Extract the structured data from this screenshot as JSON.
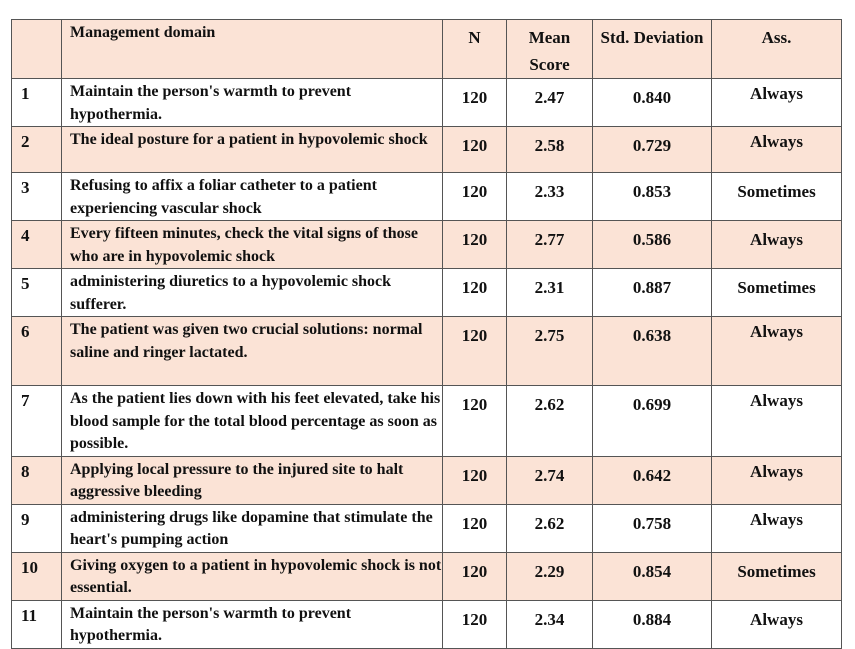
{
  "header": {
    "index": "",
    "domain": "Management domain",
    "n": "N",
    "mean": "Mean Score",
    "std": "Std. Deviation",
    "ass": "Ass."
  },
  "rows": [
    {
      "index": "1",
      "domain": "Maintain the person's warmth to prevent hypothermia.",
      "n": "120",
      "mean": "2.47",
      "std": "0.840",
      "ass": "Always"
    },
    {
      "index": "2",
      "domain": "The ideal posture for a patient in hypovolemic shock",
      "n": "120",
      "mean": "2.58",
      "std": "0.729",
      "ass": "Always"
    },
    {
      "index": "3",
      "domain": "Refusing to affix a foliar catheter to a patient experiencing vascular shock",
      "n": "120",
      "mean": "2.33",
      "std": "0.853",
      "ass": "Sometimes"
    },
    {
      "index": "4",
      "domain": "Every fifteen minutes, check the vital signs of those who are in hypovolemic shock",
      "n": "120",
      "mean": "2.77",
      "std": "0.586",
      "ass": "Always"
    },
    {
      "index": "5",
      "domain": "administering diuretics to a hypovolemic shock sufferer.",
      "n": "120",
      "mean": "2.31",
      "std": "0.887",
      "ass": "Sometimes"
    },
    {
      "index": "6",
      "domain": "The patient was given two crucial solutions: normal saline and ringer lactated.",
      "n": "120",
      "mean": "2.75",
      "std": "0.638",
      "ass": "Always"
    },
    {
      "index": "7",
      "domain": "As the patient lies down with his feet elevated, take his blood sample for the total blood percentage as soon as possible.",
      "n": "120",
      "mean": "2.62",
      "std": "0.699",
      "ass": "Always"
    },
    {
      "index": "8",
      "domain": "Applying local pressure to the injured site to halt aggressive bleeding",
      "n": "120",
      "mean": "2.74",
      "std": "0.642",
      "ass": "Always"
    },
    {
      "index": "9",
      "domain": "administering drugs like dopamine that stimulate the heart's pumping action",
      "n": "120",
      "mean": "2.62",
      "std": "0.758",
      "ass": "Always"
    },
    {
      "index": "10",
      "domain": "Giving oxygen to a patient in hypovolemic shock is not essential.",
      "n": "120",
      "mean": "2.29",
      "std": "0.854",
      "ass": "Sometimes"
    },
    {
      "index": "11",
      "domain": "Maintain the person's warmth to prevent hypothermia.",
      "n": "120",
      "mean": "2.34",
      "std": "0.884",
      "ass": "Always"
    }
  ],
  "colors": {
    "tint": "#fbe3d6",
    "plain": "#ffffff",
    "border": "#555555"
  }
}
